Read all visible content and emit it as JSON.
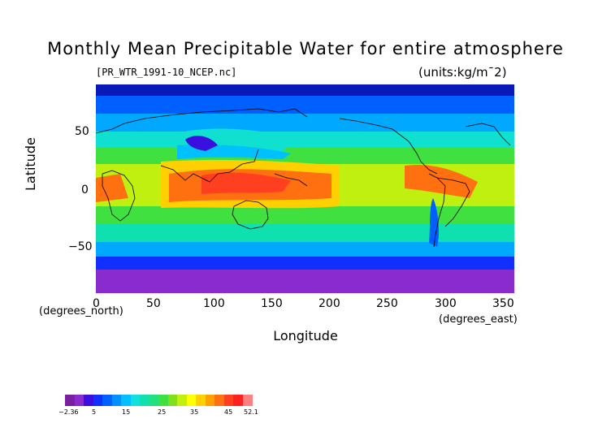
{
  "title": "Monthly Mean Precipitable Water for entire atmosphere",
  "subtitle_left": "[PR_WTR_1991-10_NCEP.nc]",
  "subtitle_right": "(units:kg/m¯2)",
  "ylabel": "Latitude",
  "xlabel": "Longitude",
  "x_unit": "(degrees_east)",
  "y_unit": "(degrees_north)",
  "x_ticks": [
    "0",
    "50",
    "100",
    "150",
    "200",
    "250",
    "300",
    "350"
  ],
  "y_ticks": [
    "50",
    "0",
    "−50"
  ],
  "colorbar": {
    "labels": [
      "−2.36",
      "5",
      "15",
      "25",
      "35",
      "45",
      "52.1"
    ],
    "colors": [
      "#7a1fa0",
      "#8a2bd0",
      "#3a10e0",
      "#1030ff",
      "#0060ff",
      "#0090ff",
      "#00c0ff",
      "#10e0e0",
      "#10e0b0",
      "#20e080",
      "#40e040",
      "#80e020",
      "#c0f010",
      "#ffff00",
      "#ffd000",
      "#ffa000",
      "#ff7010",
      "#ff4020",
      "#ff2020",
      "#ff8080"
    ]
  }
}
